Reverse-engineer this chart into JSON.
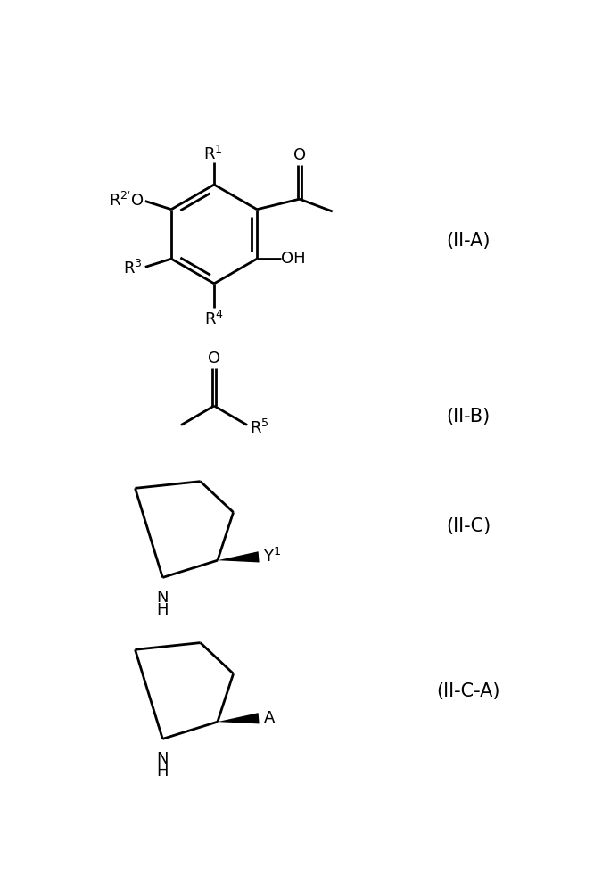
{
  "background_color": "#ffffff",
  "line_color": "#000000",
  "line_width": 2.0,
  "font_size": 13,
  "label_IIA": "(II-A)",
  "label_IIB": "(II-B)",
  "label_IIC": "(II-C)",
  "label_IICA": "(II-C-A)",
  "fig_width": 6.75,
  "fig_height": 10.0
}
